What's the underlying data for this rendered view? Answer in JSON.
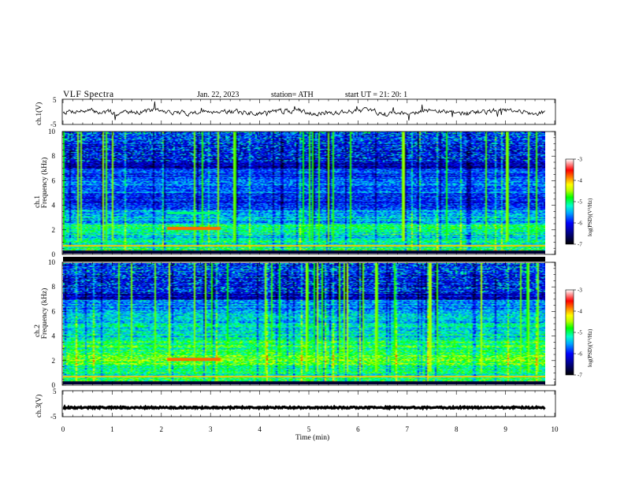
{
  "header": {
    "title": "VLF  Spectra",
    "date": "Jan. 22, 2023",
    "station": "station= ATH",
    "start": "start  UT  =    21: 20: 1"
  },
  "chart_data": [
    {
      "type": "line",
      "name": "ch1-waveform",
      "ylabel": "ch.1(V)",
      "ylim": [
        -5,
        5
      ],
      "y_ticks": [
        "5",
        "-5"
      ],
      "xlim": [
        0,
        10
      ]
    },
    {
      "type": "heatmap",
      "name": "ch1-spectrogram",
      "ylabel": "ch.1\nFrequency (kHz)",
      "ylabel_line1": "ch.1",
      "ylabel_line2": "Frequency (kHz)",
      "ylim": [
        0,
        10
      ],
      "y_ticks": [
        "0",
        "2",
        "4",
        "6",
        "8",
        "10"
      ],
      "xlim": [
        0,
        9.8
      ],
      "colorbar": {
        "label": "log(PSD)(V²/Hz)",
        "range": [
          -7,
          -3
        ],
        "ticks": [
          "-3",
          "-4",
          "-5",
          "-6",
          "-7"
        ]
      }
    },
    {
      "type": "heatmap",
      "name": "ch2-spectrogram",
      "ylabel_line1": "ch.2",
      "ylabel_line2": "Frequency (kHz)",
      "ylim": [
        0,
        10
      ],
      "y_ticks": [
        "0",
        "2",
        "4",
        "6",
        "8",
        "10"
      ],
      "xlim": [
        0,
        9.8
      ],
      "colorbar": {
        "label": "log(PSD)(V²/Hz)",
        "range": [
          -7,
          -3
        ],
        "ticks": [
          "-3",
          "-4",
          "-5",
          "-6",
          "-7"
        ]
      }
    },
    {
      "type": "line",
      "name": "ch3-waveform",
      "ylabel": "ch.3(V)",
      "ylim": [
        -5,
        5
      ],
      "y_ticks": [
        "5",
        "-5"
      ],
      "level": -1.5,
      "xlim": [
        0,
        10
      ]
    }
  ],
  "x_axis": {
    "label": "Time  (min)",
    "range": [
      0,
      10
    ],
    "ticks": [
      "0",
      "1",
      "2",
      "3",
      "4",
      "5",
      "6",
      "7",
      "8",
      "9",
      "10"
    ]
  },
  "colors": {
    "background": "#ffffff",
    "axis": "#000000",
    "colormap": [
      "#000000",
      "#00007a",
      "#0000ff",
      "#00aaff",
      "#00ffcc",
      "#00ff00",
      "#bbff00",
      "#ffff00",
      "#ff8800",
      "#ff0000",
      "#ffffff"
    ]
  }
}
